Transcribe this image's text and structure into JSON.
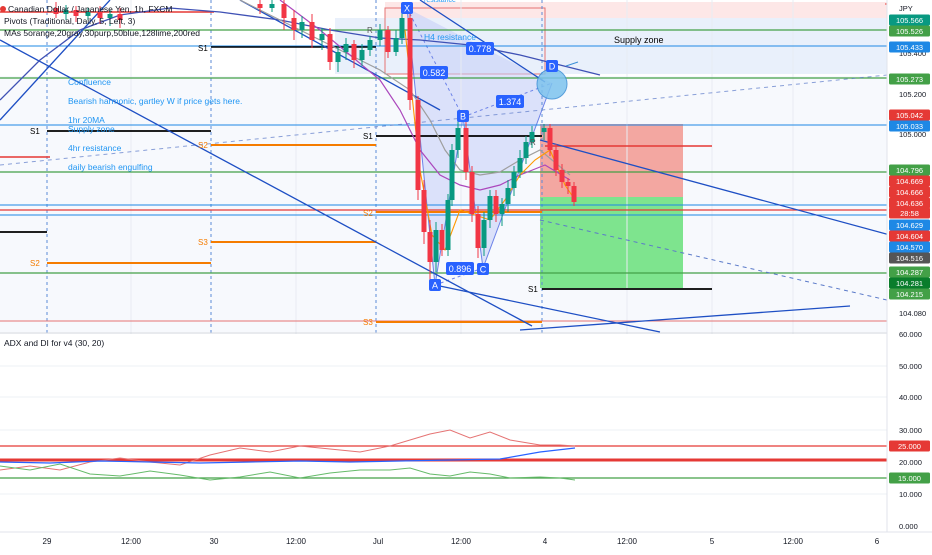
{
  "header": {
    "symbol_title": "Canadian Dollar / Japanese Yen, 1h, FXCM",
    "pivots_label": "Pivots (Traditional, Daily, 5, Left, 3)",
    "mas_label": "MAs 5orange,20gray,30purp,50blue,128lime,200red",
    "currency": "JPY"
  },
  "annotations": {
    "confluence": "Confluence",
    "bearish_harmonic": "Bearish harmonic, gartley W if price gets here.",
    "ma_1hr": "1hr 20MA",
    "supply_zone_note": "Supply zone",
    "resistance_4hr": "4hr resistance",
    "bearish_engulfing": "daily bearish engulfing",
    "supply_zone": "Supply zone",
    "h4_resistance": "H4 resistance",
    "resistance_top": "resistance",
    "s1": "S1",
    "s2": "S2",
    "s3": "S3",
    "r_label": "R"
  },
  "pattern": {
    "point_x": "X",
    "point_a": "A",
    "point_b": "B",
    "point_c": "C",
    "point_d": "D",
    "ratio_xb": "0.582",
    "ratio_xd": "0.778",
    "ratio_bd": "1.374",
    "ratio_ac": "0.896"
  },
  "price_axis": {
    "ticks": [
      "105.400",
      "105.200",
      "105.000",
      "104.080"
    ],
    "badges": [
      {
        "value": "105.566",
        "color": "#089981"
      },
      {
        "value": "105.526",
        "color": "#43a047"
      },
      {
        "value": "105.433",
        "color": "#1e88e5"
      },
      {
        "value": "105.273",
        "color": "#43a047"
      },
      {
        "value": "105.042",
        "color": "#e53935"
      },
      {
        "value": "105.033",
        "color": "#1e88e5"
      },
      {
        "value": "104.796",
        "color": "#43a047"
      },
      {
        "value": "104.669",
        "color": "#e53935"
      },
      {
        "value": "104.666",
        "color": "#e53935"
      },
      {
        "value": "104.636",
        "color": "#e53935"
      },
      {
        "value": "28:58",
        "color": "#e53935"
      },
      {
        "value": "104.629",
        "color": "#1e88e5"
      },
      {
        "value": "104.604",
        "color": "#e53935"
      },
      {
        "value": "104.570",
        "color": "#1e88e5"
      },
      {
        "value": "104.516",
        "color": "#555555"
      },
      {
        "value": "104.287",
        "color": "#43a047"
      },
      {
        "value": "104.281",
        "color": "#0a7d2c"
      },
      {
        "value": "104.215",
        "color": "#43a047"
      }
    ]
  },
  "indicator": {
    "label": "ADX and DI for v4 (30, 20)",
    "ticks": [
      "60.000",
      "50.000",
      "40.000",
      "30.000",
      "20.000",
      "10.000",
      "0.000"
    ],
    "badges": [
      {
        "value": "25.000",
        "color": "#e53935"
      },
      {
        "value": "15.000",
        "color": "#43a047"
      }
    ]
  },
  "time_axis": {
    "labels": [
      "29",
      "12:00",
      "30",
      "12:00",
      "Jul",
      "12:00",
      "4",
      "12:00",
      "5",
      "12:00",
      "6"
    ]
  },
  "colors": {
    "bull": "#089981",
    "bear": "#f23645",
    "accent": "#2962ff",
    "harmonic_fill": "#c5cdf7",
    "target_green": "#4caf50",
    "stop_red": "#f44336"
  }
}
